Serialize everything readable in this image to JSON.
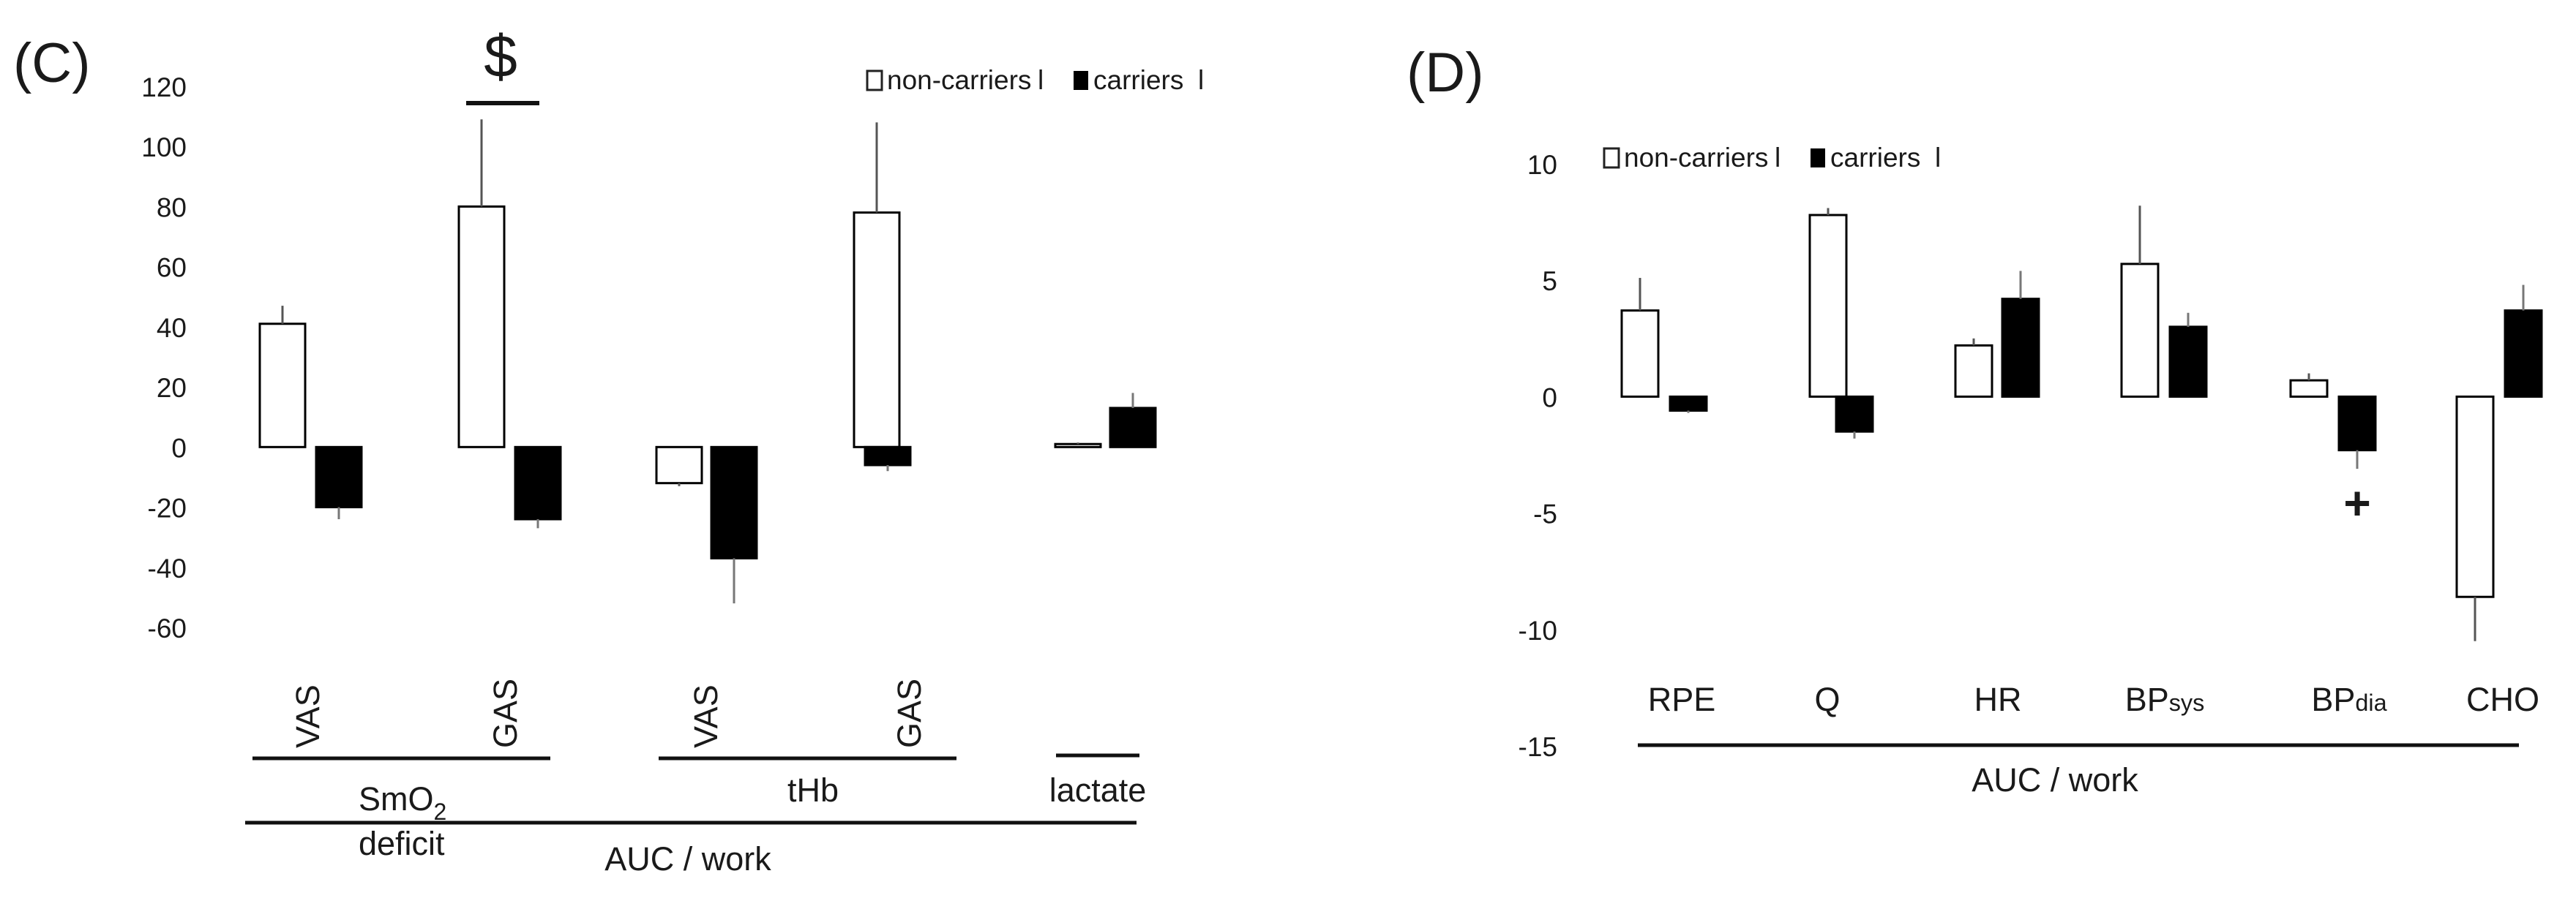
{
  "panel_c": {
    "label": "(C)",
    "sig_mark": "$",
    "group_labels": [
      "SmO",
      "2",
      "deficit",
      "tHb",
      "lactate"
    ],
    "axis_caption": "AUC / work"
  },
  "panel_d": {
    "label": "(D)",
    "sig_mark": "+",
    "axis_caption": "AUC / work"
  },
  "chart_data": [
    {
      "type": "bar",
      "panel": "C",
      "title": "",
      "xlabel": "AUC / work",
      "ylabel": "",
      "ylim": [
        -60,
        120
      ],
      "yticks": [
        120,
        100,
        80,
        60,
        40,
        20,
        0,
        -20,
        -40,
        -60
      ],
      "categories": [
        "VAS",
        "GAS",
        "VAS",
        "GAS",
        ""
      ],
      "legend": [
        "non-carriers",
        "carriers"
      ],
      "legend_position": "top-right",
      "series": [
        {
          "name": "non-carriers",
          "color": "#ffffff",
          "values": [
            41,
            80,
            -12,
            78,
            1
          ],
          "errors": [
            6,
            29,
            1,
            30,
            0.5
          ]
        },
        {
          "name": "carriers",
          "color": "#000000",
          "values": [
            -20,
            -24,
            -37,
            -6,
            13
          ],
          "errors": [
            4,
            3,
            15,
            2,
            5
          ]
        }
      ]
    },
    {
      "type": "bar",
      "panel": "D",
      "title": "",
      "xlabel": "AUC / work",
      "ylabel": "",
      "ylim": [
        -15,
        10
      ],
      "yticks": [
        10,
        5,
        0,
        -5,
        -10,
        -15
      ],
      "categories": [
        "RPE",
        "Q",
        "HR",
        "BPsys",
        "BPdia",
        "CHO"
      ],
      "legend": [
        "non-carriers",
        "carriers"
      ],
      "legend_position": "top-left",
      "series": [
        {
          "name": "non-carriers",
          "color": "#ffffff",
          "values": [
            3.7,
            7.8,
            2.2,
            5.7,
            0.7,
            -8.6
          ],
          "errors": [
            1.4,
            0.3,
            0.3,
            2.5,
            0.3,
            1.9
          ]
        },
        {
          "name": "carriers",
          "color": "#000000",
          "values": [
            -0.6,
            -1.5,
            4.2,
            3.0,
            -2.3,
            3.7
          ],
          "errors": [
            0.1,
            0.3,
            1.2,
            0.6,
            0.8,
            1.1
          ]
        }
      ]
    }
  ]
}
